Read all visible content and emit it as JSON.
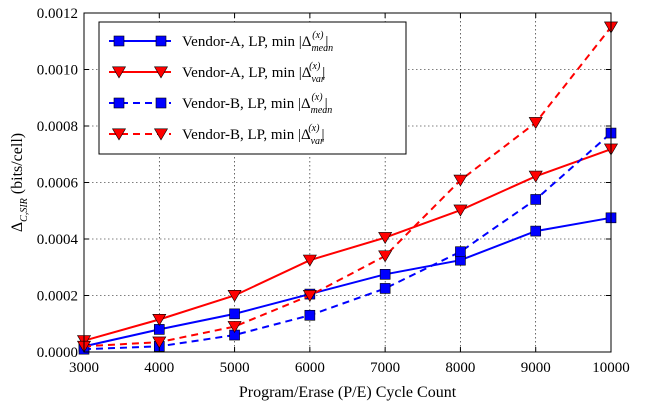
{
  "chart_data": {
    "type": "line",
    "x": [
      3000,
      4000,
      5000,
      6000,
      7000,
      8000,
      9000,
      10000
    ],
    "xlabel": "Program/Erase (P/E) Cycle Count",
    "ylabel": "Δ_{C,SIR} (bits/cell)",
    "xlim": [
      3000,
      10000
    ],
    "ylim": [
      0,
      0.0012
    ],
    "xticks": [
      "3000",
      "4000",
      "5000",
      "6000",
      "7000",
      "8000",
      "9000",
      "10000"
    ],
    "yticks": [
      "0.0000",
      "0.0002",
      "0.0004",
      "0.0006",
      "0.0008",
      "0.0010",
      "0.0012"
    ],
    "grid": true,
    "legend_position": "top-left",
    "series": [
      {
        "name": "Vendor-A, LP, min |Δ_mean^(x)|",
        "label_main": "Vendor-A, LP, min |Δ",
        "label_sup": "(x)",
        "label_sub": "mean",
        "label_tail": "|",
        "color": "#0000ff",
        "dash": "solid",
        "marker": "square",
        "values": [
          2e-05,
          8e-05,
          0.000135,
          0.000205,
          0.000275,
          0.000325,
          0.000428,
          0.000475
        ]
      },
      {
        "name": "Vendor-A, LP, min |Δ_var^(x)|",
        "label_main": "Vendor-A, LP, min |Δ",
        "label_sup": "(x)",
        "label_sub": "var",
        "label_tail": "|",
        "color": "#ff0000",
        "dash": "solid",
        "marker": "triangle-down",
        "values": [
          4e-05,
          0.000115,
          0.0002,
          0.000325,
          0.000405,
          0.000502,
          0.000622,
          0.000718
        ]
      },
      {
        "name": "Vendor-B, LP, min |Δ_mean^(x)|",
        "label_main": "Vendor-B, LP, min |Δ",
        "label_sup": "(x)",
        "label_sub": "mean",
        "label_tail": "|",
        "color": "#0000ff",
        "dash": "dashed",
        "marker": "square",
        "values": [
          1e-05,
          2e-05,
          6e-05,
          0.00013,
          0.000225,
          0.000355,
          0.00054,
          0.000775
        ]
      },
      {
        "name": "Vendor-B, LP, min |Δ_var^(x)|",
        "label_main": "Vendor-B, LP, min |Δ",
        "label_sup": "(x)",
        "label_sub": "var",
        "label_tail": "|",
        "color": "#ff0000",
        "dash": "dashed",
        "marker": "triangle-down",
        "values": [
          2e-05,
          3.5e-05,
          9e-05,
          0.0002,
          0.00034,
          0.000608,
          0.000812,
          0.00115
        ]
      }
    ]
  }
}
